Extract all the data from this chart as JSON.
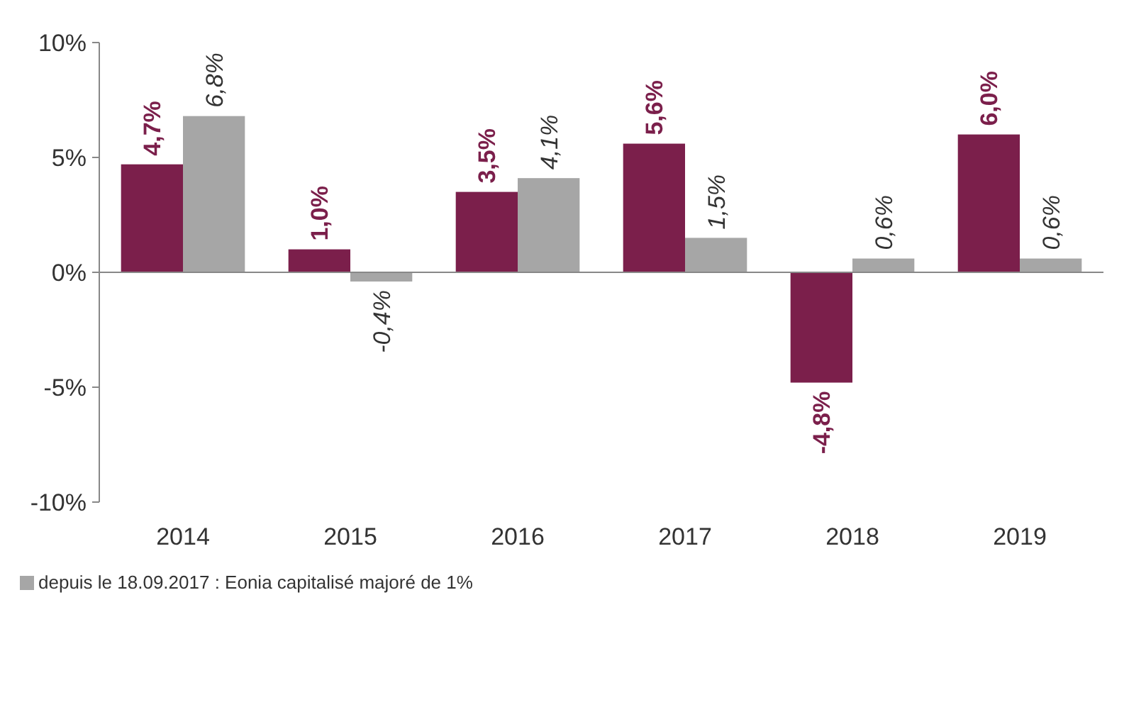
{
  "chart_data": {
    "type": "bar",
    "categories": [
      "2014",
      "2015",
      "2016",
      "2017",
      "2018",
      "2019"
    ],
    "ylim": [
      -10,
      10
    ],
    "yticks": [
      {
        "value": -10,
        "label": "-10%"
      },
      {
        "value": -5,
        "label": "-5%"
      },
      {
        "value": 0,
        "label": "0%"
      },
      {
        "value": 5,
        "label": "5%"
      },
      {
        "value": 10,
        "label": "10%"
      }
    ],
    "legend": "bottom",
    "series": [
      {
        "color": "#7b1f4b",
        "values": [
          4.7,
          1.0,
          3.5,
          5.6,
          -4.8,
          6.0
        ],
        "value_labels": [
          "4,7%",
          "1,0%",
          "3,5%",
          "5,6%",
          "-4,8%",
          "6,0%"
        ]
      },
      {
        "name": "depuis le 18.09.2017 : Eonia capitalisé majoré de 1%",
        "color": "#a6a6a6",
        "values": [
          6.8,
          -0.4,
          4.1,
          1.5,
          0.6,
          0.6
        ],
        "value_labels": [
          "6,8%",
          "-0,4%",
          "4,1%",
          "1,5%",
          "0,6%",
          "0,6%"
        ]
      }
    ]
  }
}
